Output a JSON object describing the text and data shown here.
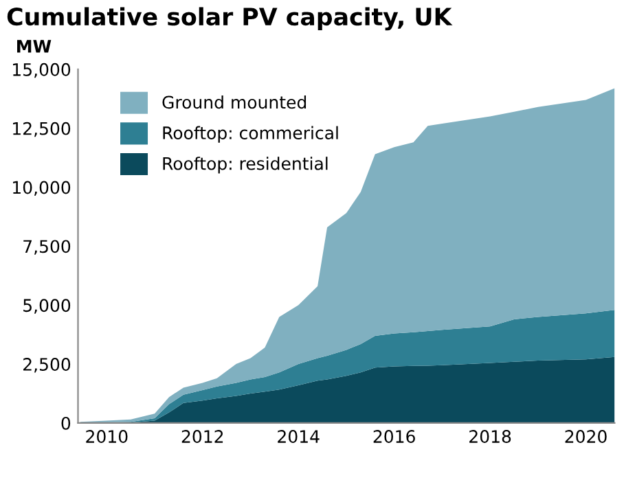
{
  "chart_data": {
    "type": "area",
    "stacked": true,
    "title": "Cumulative solar PV capacity, UK",
    "ylabel": "MW",
    "x": [
      2009.45,
      2010,
      2010.5,
      2011,
      2011.3,
      2011.6,
      2012,
      2012.3,
      2012.7,
      2013,
      2013.3,
      2013.6,
      2014,
      2014.4,
      2014.6,
      2015,
      2015.3,
      2015.6,
      2016,
      2016.4,
      2016.7,
      2017,
      2018,
      2018.5,
      2019,
      2020,
      2020.6
    ],
    "series": [
      {
        "name": "Rooftop: residential",
        "color": "#0b4a5c",
        "values": [
          0,
          10,
          20,
          100,
          450,
          850,
          950,
          1050,
          1150,
          1250,
          1330,
          1420,
          1600,
          1800,
          1850,
          2000,
          2150,
          2350,
          2400,
          2420,
          2430,
          2450,
          2550,
          2600,
          2650,
          2700,
          2800
        ]
      },
      {
        "name": "Rooftop: commerical",
        "color": "#2e7f93",
        "values": [
          0,
          20,
          30,
          100,
          350,
          350,
          450,
          500,
          550,
          600,
          620,
          730,
          900,
          950,
          1000,
          1100,
          1200,
          1350,
          1400,
          1430,
          1470,
          1500,
          1550,
          1800,
          1850,
          1950,
          2000
        ]
      },
      {
        "name": "Ground mounted",
        "color": "#80b0c0",
        "values": [
          50,
          70,
          100,
          200,
          300,
          300,
          300,
          350,
          800,
          900,
          1250,
          2350,
          2500,
          3050,
          5450,
          5800,
          6450,
          7700,
          7900,
          8050,
          8700,
          8750,
          8900,
          8800,
          8900,
          9050,
          9400
        ]
      }
    ],
    "xlim": [
      2009.4,
      2020.6
    ],
    "xticks": [
      2010,
      2012,
      2014,
      2016,
      2018,
      2020
    ],
    "ylim": [
      0,
      15000
    ],
    "yticks": [
      {
        "value": 0,
        "label": "0"
      },
      {
        "value": 2500,
        "label": "2,500"
      },
      {
        "value": 5000,
        "label": "5,000"
      },
      {
        "value": 7500,
        "label": "7,500"
      },
      {
        "value": 10000,
        "label": "10,000"
      },
      {
        "value": 12500,
        "label": "12,500"
      },
      {
        "value": 15000,
        "label": "15,000"
      }
    ],
    "grid": false,
    "legend": "top left"
  }
}
